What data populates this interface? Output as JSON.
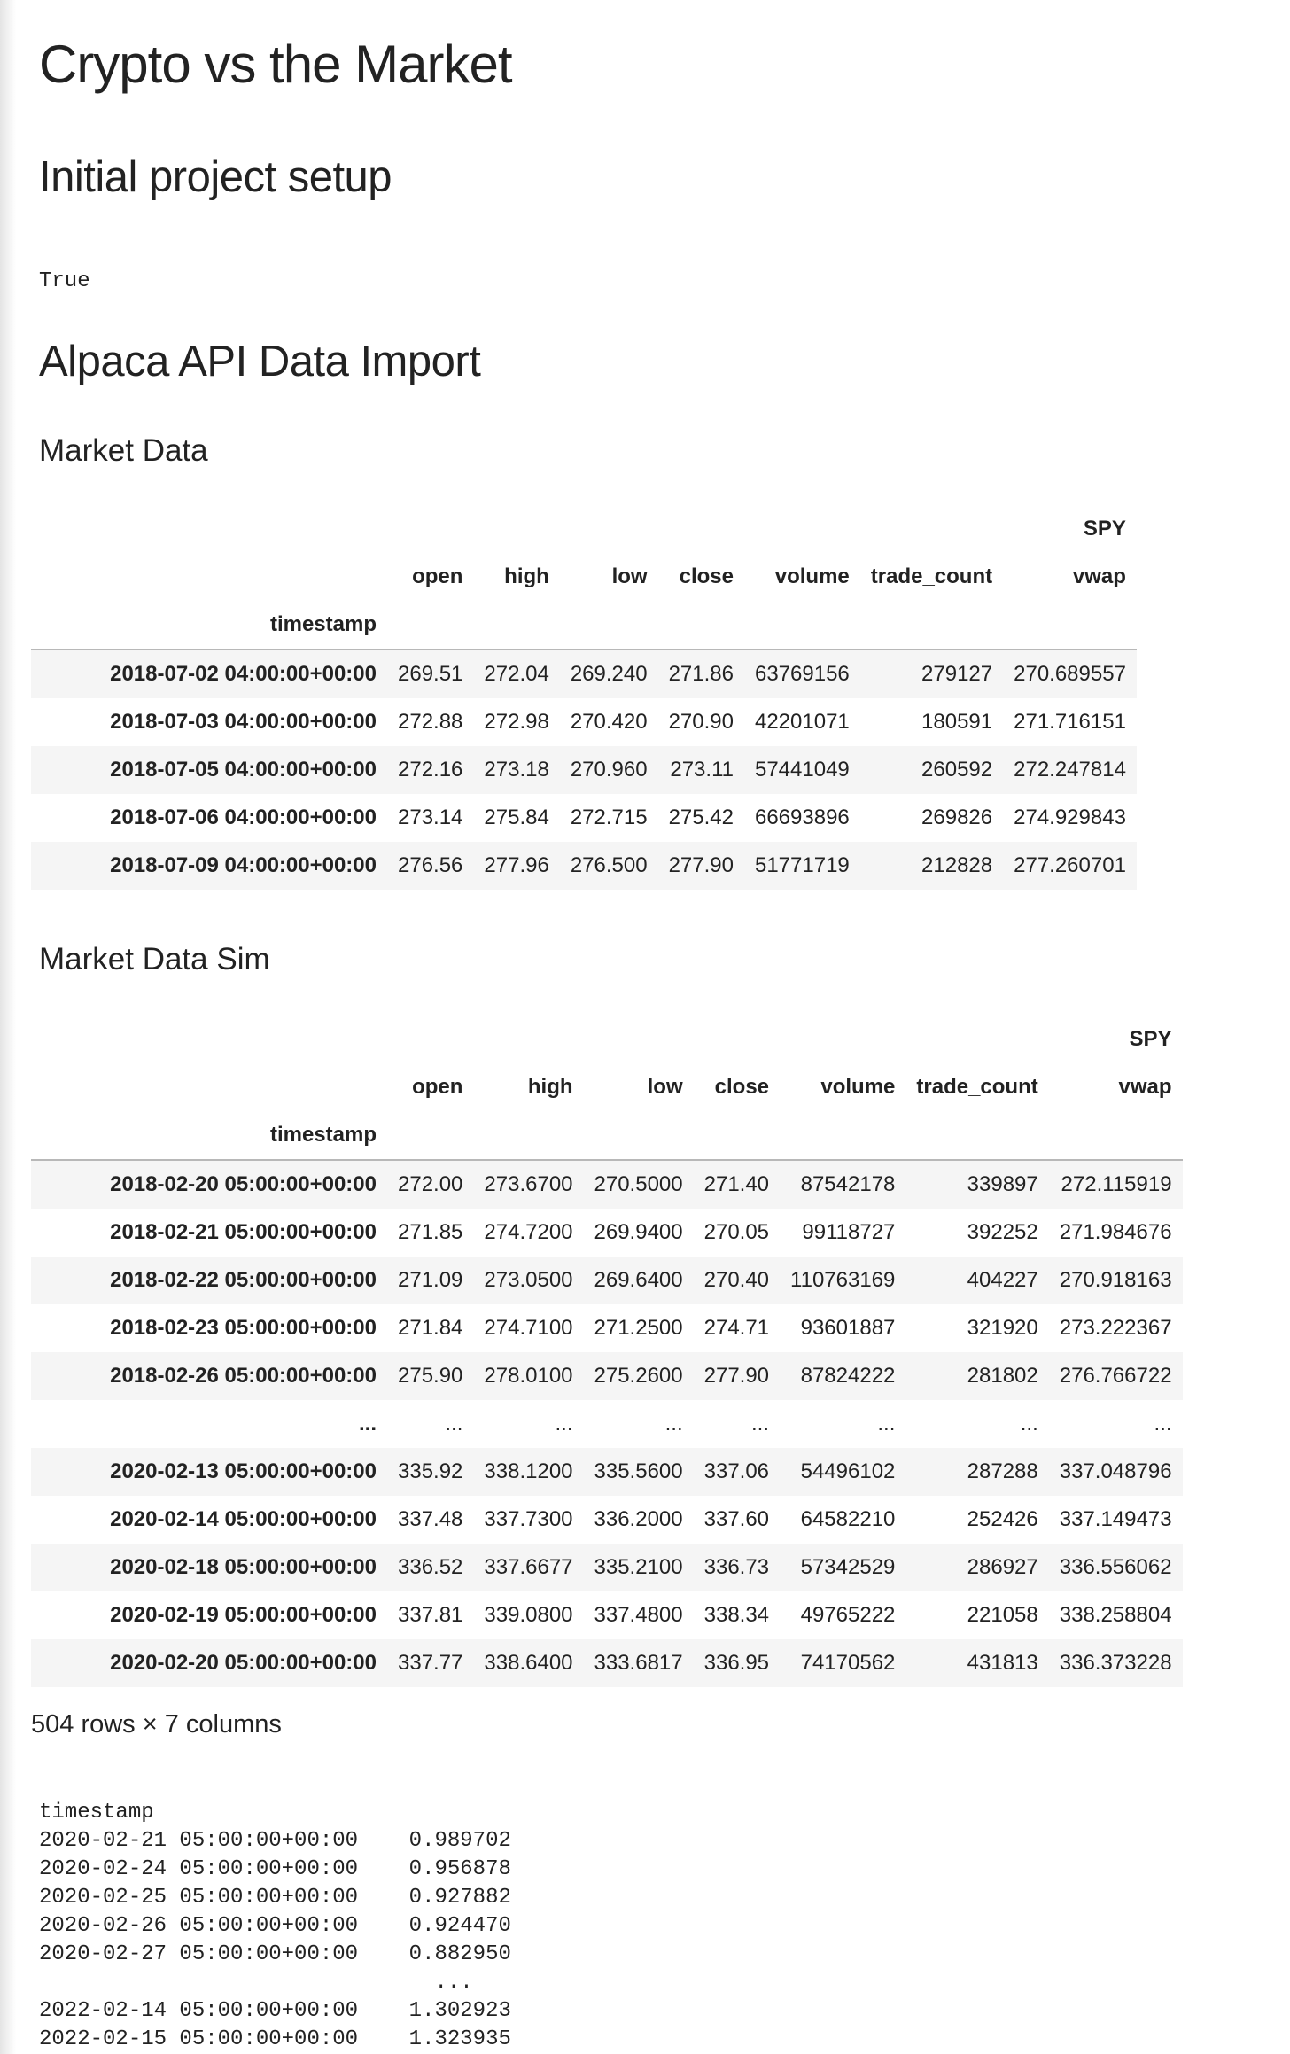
{
  "notebook": {
    "title": "Crypto vs the Market",
    "section_setup": "Initial project setup",
    "setup_output": "True",
    "section_import": "Alpaca API Data Import",
    "market_data_heading": "Market Data",
    "market_data_sim_heading": "Market Data Sim",
    "rows_info": "504 rows × 7 columns"
  },
  "market_table": {
    "top_header": "SPY",
    "columns": [
      "open",
      "high",
      "low",
      "close",
      "volume",
      "trade_count",
      "vwap"
    ],
    "index_name": "timestamp",
    "rows": [
      {
        "index": "2018-07-02 04:00:00+00:00",
        "cells": [
          "269.51",
          "272.04",
          "269.240",
          "271.86",
          "63769156",
          "279127",
          "270.689557"
        ]
      },
      {
        "index": "2018-07-03 04:00:00+00:00",
        "cells": [
          "272.88",
          "272.98",
          "270.420",
          "270.90",
          "42201071",
          "180591",
          "271.716151"
        ]
      },
      {
        "index": "2018-07-05 04:00:00+00:00",
        "cells": [
          "272.16",
          "273.18",
          "270.960",
          "273.11",
          "57441049",
          "260592",
          "272.247814"
        ]
      },
      {
        "index": "2018-07-06 04:00:00+00:00",
        "cells": [
          "273.14",
          "275.84",
          "272.715",
          "275.42",
          "66693896",
          "269826",
          "274.929843"
        ]
      },
      {
        "index": "2018-07-09 04:00:00+00:00",
        "cells": [
          "276.56",
          "277.96",
          "276.500",
          "277.90",
          "51771719",
          "212828",
          "277.260701"
        ]
      }
    ]
  },
  "sim_table": {
    "top_header": "SPY",
    "columns": [
      "open",
      "high",
      "low",
      "close",
      "volume",
      "trade_count",
      "vwap"
    ],
    "index_name": "timestamp",
    "rows": [
      {
        "index": "2018-02-20 05:00:00+00:00",
        "cells": [
          "272.00",
          "273.6700",
          "270.5000",
          "271.40",
          "87542178",
          "339897",
          "272.115919"
        ]
      },
      {
        "index": "2018-02-21 05:00:00+00:00",
        "cells": [
          "271.85",
          "274.7200",
          "269.9400",
          "270.05",
          "99118727",
          "392252",
          "271.984676"
        ]
      },
      {
        "index": "2018-02-22 05:00:00+00:00",
        "cells": [
          "271.09",
          "273.0500",
          "269.6400",
          "270.40",
          "110763169",
          "404227",
          "270.918163"
        ]
      },
      {
        "index": "2018-02-23 05:00:00+00:00",
        "cells": [
          "271.84",
          "274.7100",
          "271.2500",
          "274.71",
          "93601887",
          "321920",
          "273.222367"
        ]
      },
      {
        "index": "2018-02-26 05:00:00+00:00",
        "cells": [
          "275.90",
          "278.0100",
          "275.2600",
          "277.90",
          "87824222",
          "281802",
          "276.766722"
        ]
      },
      {
        "index": "...",
        "cells": [
          "...",
          "...",
          "...",
          "...",
          "...",
          "...",
          "..."
        ]
      },
      {
        "index": "2020-02-13 05:00:00+00:00",
        "cells": [
          "335.92",
          "338.1200",
          "335.5600",
          "337.06",
          "54496102",
          "287288",
          "337.048796"
        ]
      },
      {
        "index": "2020-02-14 05:00:00+00:00",
        "cells": [
          "337.48",
          "337.7300",
          "336.2000",
          "337.60",
          "64582210",
          "252426",
          "337.149473"
        ]
      },
      {
        "index": "2020-02-18 05:00:00+00:00",
        "cells": [
          "336.52",
          "337.6677",
          "335.2100",
          "336.73",
          "57342529",
          "286927",
          "336.556062"
        ]
      },
      {
        "index": "2020-02-19 05:00:00+00:00",
        "cells": [
          "337.81",
          "339.0800",
          "337.4800",
          "338.34",
          "49765222",
          "221058",
          "338.258804"
        ]
      },
      {
        "index": "2020-02-20 05:00:00+00:00",
        "cells": [
          "337.77",
          "338.6400",
          "333.6817",
          "336.95",
          "74170562",
          "431813",
          "336.373228"
        ]
      }
    ]
  },
  "series_output": {
    "header": "timestamp",
    "lines": [
      "2020-02-21 05:00:00+00:00    0.989702",
      "2020-02-24 05:00:00+00:00    0.956878",
      "2020-02-25 05:00:00+00:00    0.927882",
      "2020-02-26 05:00:00+00:00    0.924470",
      "2020-02-27 05:00:00+00:00    0.882950",
      "                               ...",
      "2022-02-14 05:00:00+00:00    1.302923",
      "2022-02-15 05:00:00+00:00    1.323935"
    ]
  }
}
